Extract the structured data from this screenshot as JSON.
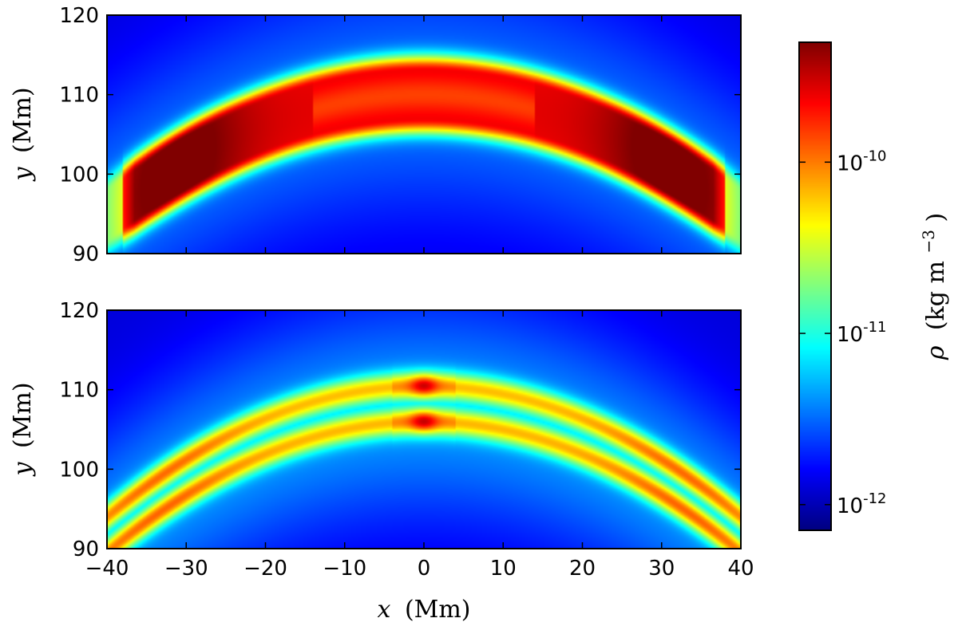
{
  "chart_data": [
    {
      "type": "heatmap",
      "panel": "top",
      "xlabel": {
        "var": "x",
        "unit": "(Mm)"
      },
      "ylabel": {
        "var": "y",
        "unit": "(Mm)"
      },
      "xlim": [
        -40,
        40
      ],
      "ylim": [
        90,
        120
      ],
      "xticks": [
        -40,
        -30,
        -20,
        -10,
        0,
        10,
        20,
        30,
        40
      ],
      "yticks": [
        90,
        100,
        110,
        120
      ],
      "ytick_labels": [
        "90",
        "100",
        "110",
        "120"
      ],
      "x_tick_labels_shown": false,
      "structure": {
        "description": "dense arched prominence band",
        "peak_log10_rho": -9.65,
        "background_log10_rho": -11.9,
        "arch_top_y": 113.0,
        "arch_ends": [
          {
            "x": -38,
            "y": 98
          },
          {
            "x": 38,
            "y": 98
          }
        ]
      }
    },
    {
      "type": "heatmap",
      "panel": "bottom",
      "xlabel": {
        "var": "x",
        "unit": "(Mm)"
      },
      "ylabel": {
        "var": "y",
        "unit": "(Mm)"
      },
      "xlim": [
        -40,
        40
      ],
      "ylim": [
        90,
        120
      ],
      "xticks": [
        -40,
        -30,
        -20,
        -10,
        0,
        10,
        20,
        30,
        40
      ],
      "xtick_labels": [
        "−40",
        "−30",
        "−20",
        "−10",
        "0",
        "10",
        "20",
        "30",
        "40"
      ],
      "yticks": [
        90,
        100,
        110,
        120
      ],
      "ytick_labels": [
        "90",
        "100",
        "110",
        "120"
      ],
      "structure": {
        "description": "diffuse split arch (two parallel strands)",
        "peak_log10_rho": -10.6,
        "background_log10_rho": -11.9,
        "arch_top_y": 110.5,
        "arch_ends": [
          {
            "x": -40,
            "y": 94
          },
          {
            "x": 40,
            "y": 94
          }
        ]
      }
    }
  ],
  "colorbar": {
    "label": {
      "symbol": "ρ",
      "unit": "(kg m",
      "exponent": "−3",
      "close": ")"
    },
    "scale": "log",
    "colormap": "jet",
    "range_log10": [
      -12.15,
      -9.3
    ],
    "ticks": [
      {
        "log10": -10,
        "base": "10",
        "exp": "-10"
      },
      {
        "log10": -11,
        "base": "10",
        "exp": "-11"
      },
      {
        "log10": -12,
        "base": "10",
        "exp": "-12"
      }
    ]
  }
}
